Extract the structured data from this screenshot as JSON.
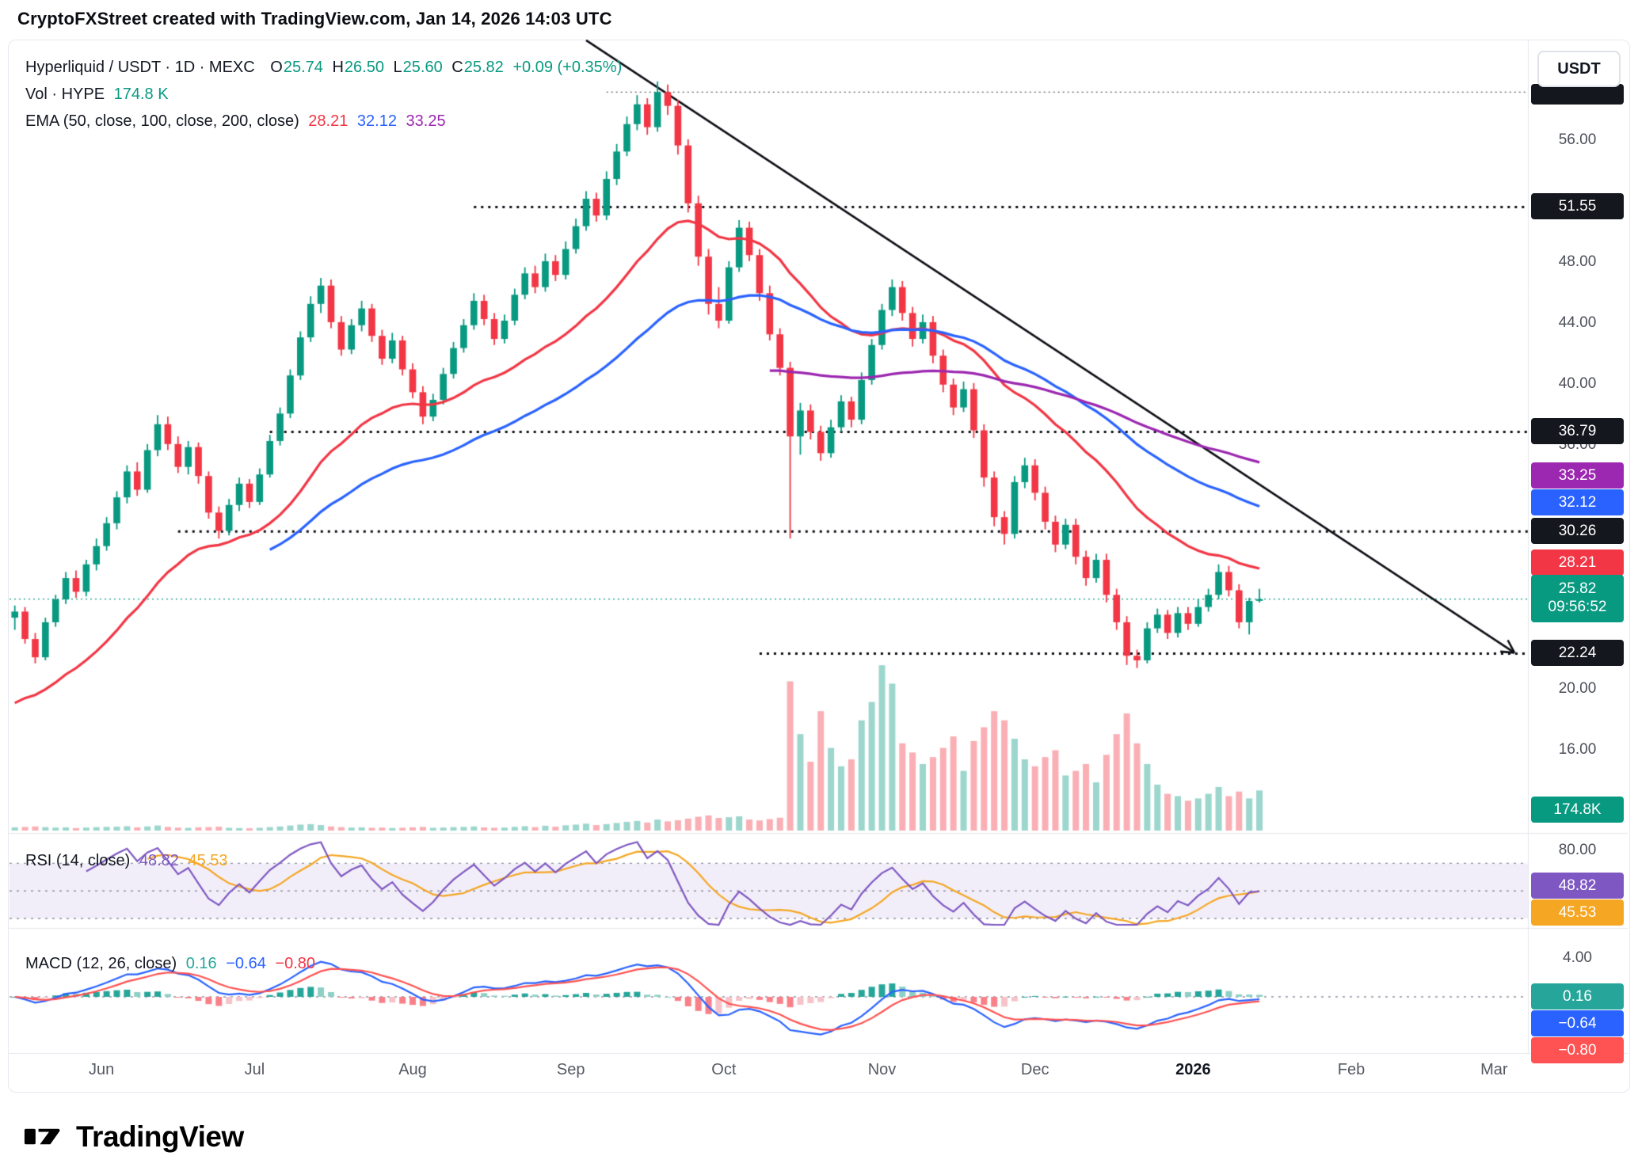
{
  "header": {
    "title": "CryptoFXStreet created with TradingView.com, Jan 14, 2026 14:03 UTC"
  },
  "colors": {
    "up": "#089981",
    "down": "#f23645",
    "blue": "#2962ff",
    "purple": "#9c27b0",
    "rsi_purple": "#7e57c2",
    "yellow": "#f5a623",
    "hist_pos": "#26a69a",
    "black": "#15171e",
    "text": "#131722",
    "muted": "#50535e",
    "signal": "#ff5252"
  },
  "legend": {
    "symbol": "Hyperliquid / USDT · 1D · MEXC",
    "o_label": "O",
    "o": "25.74",
    "h_label": "H",
    "h": "26.50",
    "l_label": "L",
    "l": "25.60",
    "c_label": "C",
    "c": "25.82",
    "change": "+0.09 (+0.35%)",
    "vol_label": "Vol · HYPE",
    "vol_value": "174.8 K",
    "ema_label": "EMA (50, close, 100, close, 200, close)",
    "ema50": "28.21",
    "ema100": "32.12",
    "ema200": "33.25"
  },
  "rsi_legend": {
    "label": "RSI (14, close)",
    "value": "48.82",
    "ma_value": "45.53"
  },
  "macd_legend": {
    "label": "MACD (12, 26, close)",
    "hist": "0.16",
    "macd": "−0.64",
    "signal": "−0.80"
  },
  "price_axis": {
    "currency": "USDT",
    "ticks": [
      {
        "label": "56.00"
      },
      {
        "label": "48.00"
      },
      {
        "label": "44.00"
      },
      {
        "label": "40.00"
      },
      {
        "label": "36.00"
      },
      {
        "label": "20.00"
      },
      {
        "label": "16.00"
      }
    ],
    "badges": [
      {
        "label": "51.55"
      },
      {
        "label": "36.79"
      },
      {
        "label": "33.25"
      },
      {
        "label": "32.12"
      },
      {
        "label": "30.26"
      },
      {
        "label": "28.21"
      },
      {
        "label": "25.82",
        "countdown": "09:56:52"
      },
      {
        "label": "22.24"
      },
      {
        "label": "174.8K"
      }
    ]
  },
  "rsi_axis": {
    "tick": "80.00",
    "badges": [
      {
        "label": "48.82"
      },
      {
        "label": "45.53"
      }
    ]
  },
  "macd_axis": {
    "tick": "4.00",
    "badges": [
      {
        "label": "0.16"
      },
      {
        "label": "−0.64"
      },
      {
        "label": "−0.80"
      }
    ]
  },
  "footer": {
    "brand": "TradingView"
  },
  "chart_data": {
    "type": "candlestick",
    "title": "Hyperliquid / USDT · 1D · MEXC",
    "days_per_candle": 2,
    "ylim": [
      14,
      62
    ],
    "volume_scale_max": 800,
    "candles": [
      [
        24.6,
        25.4,
        23.8,
        25.0,
        14
      ],
      [
        25.0,
        25.3,
        22.9,
        23.2,
        16
      ],
      [
        23.2,
        23.6,
        21.6,
        22.0,
        18
      ],
      [
        22.0,
        24.6,
        21.8,
        24.3,
        15
      ],
      [
        24.3,
        26.1,
        24.0,
        25.8,
        13
      ],
      [
        25.8,
        27.6,
        25.5,
        27.2,
        14
      ],
      [
        27.2,
        27.7,
        25.9,
        26.3,
        11
      ],
      [
        26.3,
        28.4,
        26.0,
        28.1,
        13
      ],
      [
        28.1,
        29.8,
        27.7,
        29.3,
        15
      ],
      [
        29.3,
        31.2,
        29.0,
        30.8,
        16
      ],
      [
        30.8,
        32.9,
        30.4,
        32.5,
        17
      ],
      [
        32.5,
        34.6,
        32.1,
        34.2,
        19
      ],
      [
        34.2,
        34.8,
        32.6,
        33.0,
        14
      ],
      [
        33.0,
        36.0,
        32.8,
        35.6,
        18
      ],
      [
        35.6,
        37.9,
        35.2,
        37.3,
        22
      ],
      [
        37.3,
        37.8,
        35.6,
        36.0,
        16
      ],
      [
        36.0,
        36.5,
        34.1,
        34.5,
        13
      ],
      [
        34.5,
        36.2,
        34.0,
        35.8,
        12
      ],
      [
        35.8,
        36.1,
        33.4,
        33.9,
        14
      ],
      [
        33.9,
        34.2,
        31.1,
        31.5,
        15
      ],
      [
        31.5,
        31.9,
        29.8,
        30.3,
        17
      ],
      [
        30.3,
        32.4,
        30.0,
        32.0,
        12
      ],
      [
        32.0,
        33.8,
        31.6,
        33.4,
        11
      ],
      [
        33.4,
        33.7,
        31.8,
        32.2,
        10
      ],
      [
        32.2,
        34.4,
        32.0,
        34.0,
        12
      ],
      [
        34.0,
        36.6,
        33.8,
        36.2,
        15
      ],
      [
        36.2,
        38.4,
        35.9,
        38.0,
        18
      ],
      [
        38.0,
        40.9,
        37.7,
        40.5,
        22
      ],
      [
        40.5,
        43.4,
        40.2,
        43.0,
        26
      ],
      [
        43.0,
        45.7,
        42.7,
        45.2,
        28
      ],
      [
        45.2,
        46.9,
        44.6,
        46.4,
        24
      ],
      [
        46.4,
        46.8,
        43.6,
        44.0,
        18
      ],
      [
        44.0,
        44.4,
        41.8,
        42.2,
        15
      ],
      [
        42.2,
        44.2,
        41.9,
        43.8,
        13
      ],
      [
        43.8,
        45.4,
        43.4,
        44.9,
        14
      ],
      [
        44.9,
        45.2,
        42.7,
        43.1,
        12
      ],
      [
        43.1,
        43.5,
        41.2,
        41.6,
        13
      ],
      [
        41.6,
        43.3,
        41.3,
        42.8,
        11
      ],
      [
        42.8,
        43.1,
        40.5,
        40.9,
        12
      ],
      [
        40.9,
        41.3,
        39.0,
        39.4,
        14
      ],
      [
        39.4,
        39.8,
        37.3,
        37.8,
        16
      ],
      [
        37.8,
        39.3,
        37.5,
        38.9,
        12
      ],
      [
        38.9,
        41.0,
        38.6,
        40.6,
        13
      ],
      [
        40.6,
        42.7,
        40.3,
        42.3,
        15
      ],
      [
        42.3,
        44.2,
        42.0,
        43.8,
        16
      ],
      [
        43.8,
        45.9,
        43.5,
        45.4,
        18
      ],
      [
        45.4,
        45.8,
        43.8,
        44.2,
        14
      ],
      [
        44.2,
        44.6,
        42.5,
        42.9,
        12
      ],
      [
        42.9,
        44.5,
        42.6,
        44.1,
        13
      ],
      [
        44.1,
        46.2,
        43.8,
        45.8,
        16
      ],
      [
        45.8,
        47.6,
        45.5,
        47.2,
        19
      ],
      [
        47.2,
        47.7,
        45.9,
        46.3,
        15
      ],
      [
        46.3,
        48.5,
        46.0,
        48.0,
        21
      ],
      [
        48.0,
        48.4,
        46.7,
        47.1,
        17
      ],
      [
        47.1,
        49.3,
        46.8,
        48.8,
        23
      ],
      [
        48.8,
        50.8,
        48.5,
        50.3,
        26
      ],
      [
        50.3,
        52.6,
        50.0,
        52.1,
        30
      ],
      [
        52.1,
        52.5,
        50.6,
        51.0,
        24
      ],
      [
        51.0,
        53.9,
        50.7,
        53.4,
        28
      ],
      [
        53.4,
        55.7,
        53.0,
        55.2,
        33
      ],
      [
        55.2,
        57.5,
        54.9,
        57.0,
        38
      ],
      [
        57.0,
        58.9,
        56.6,
        58.3,
        42
      ],
      [
        58.3,
        58.7,
        56.3,
        56.8,
        35
      ],
      [
        56.8,
        59.8,
        56.5,
        59.1,
        48
      ],
      [
        59.1,
        59.6,
        57.6,
        58.2,
        40
      ],
      [
        58.2,
        58.6,
        55.0,
        55.6,
        45
      ],
      [
        55.6,
        56.0,
        51.2,
        51.8,
        52
      ],
      [
        51.8,
        52.3,
        47.7,
        48.3,
        60
      ],
      [
        48.3,
        48.8,
        44.5,
        45.2,
        66
      ],
      [
        45.2,
        46.3,
        43.6,
        44.1,
        55
      ],
      [
        44.1,
        48.0,
        43.9,
        47.6,
        58
      ],
      [
        47.6,
        50.7,
        47.3,
        50.2,
        62
      ],
      [
        50.2,
        50.6,
        48.0,
        48.4,
        48
      ],
      [
        48.4,
        48.8,
        45.4,
        45.9,
        44
      ],
      [
        45.9,
        46.4,
        42.8,
        43.2,
        50
      ],
      [
        43.2,
        43.6,
        40.5,
        41.0,
        56
      ],
      [
        41.0,
        41.4,
        29.8,
        36.5,
        650
      ],
      [
        36.5,
        38.7,
        35.3,
        38.2,
        420
      ],
      [
        38.2,
        38.6,
        36.3,
        36.8,
        300
      ],
      [
        36.8,
        37.2,
        34.9,
        35.4,
        520
      ],
      [
        35.4,
        37.6,
        35.1,
        37.1,
        360
      ],
      [
        37.1,
        39.2,
        36.8,
        38.8,
        280
      ],
      [
        38.8,
        39.1,
        37.1,
        37.6,
        310
      ],
      [
        37.6,
        40.7,
        37.3,
        40.2,
        480
      ],
      [
        40.2,
        42.9,
        39.9,
        42.5,
        560
      ],
      [
        42.5,
        45.2,
        42.2,
        44.8,
        720
      ],
      [
        44.8,
        46.8,
        44.4,
        46.3,
        640
      ],
      [
        46.3,
        46.7,
        44.1,
        44.6,
        380
      ],
      [
        44.6,
        45.0,
        42.4,
        42.9,
        340
      ],
      [
        42.9,
        44.5,
        42.6,
        44.0,
        290
      ],
      [
        44.0,
        44.4,
        41.3,
        41.8,
        320
      ],
      [
        41.8,
        42.2,
        39.4,
        39.9,
        360
      ],
      [
        39.9,
        40.3,
        37.9,
        38.4,
        410
      ],
      [
        38.4,
        40.1,
        38.1,
        39.6,
        260
      ],
      [
        39.6,
        40.0,
        36.4,
        36.9,
        390
      ],
      [
        36.9,
        37.3,
        33.2,
        33.8,
        450
      ],
      [
        33.8,
        34.2,
        30.6,
        31.2,
        520
      ],
      [
        31.2,
        31.6,
        29.4,
        30.1,
        480
      ],
      [
        30.1,
        33.9,
        29.8,
        33.5,
        400
      ],
      [
        33.5,
        35.1,
        33.1,
        34.6,
        310
      ],
      [
        34.6,
        35.0,
        32.3,
        32.8,
        280
      ],
      [
        32.8,
        33.2,
        30.4,
        30.9,
        320
      ],
      [
        30.9,
        31.3,
        28.9,
        29.4,
        350
      ],
      [
        29.4,
        31.1,
        29.1,
        30.7,
        240
      ],
      [
        30.7,
        31.1,
        28.1,
        28.6,
        260
      ],
      [
        28.6,
        29.0,
        26.7,
        27.2,
        290
      ],
      [
        27.2,
        28.8,
        26.9,
        28.4,
        210
      ],
      [
        28.4,
        28.8,
        25.6,
        26.1,
        330
      ],
      [
        26.1,
        26.5,
        23.8,
        24.3,
        420
      ],
      [
        24.3,
        24.7,
        21.5,
        22.1,
        510
      ],
      [
        22.1,
        22.5,
        21.3,
        21.8,
        380
      ],
      [
        21.8,
        24.3,
        21.6,
        23.9,
        290
      ],
      [
        23.9,
        25.2,
        23.6,
        24.8,
        200
      ],
      [
        24.8,
        25.1,
        23.2,
        23.6,
        160
      ],
      [
        23.6,
        25.3,
        23.3,
        24.9,
        150
      ],
      [
        24.9,
        25.3,
        23.8,
        24.2,
        130
      ],
      [
        24.2,
        25.8,
        24.0,
        25.3,
        140
      ],
      [
        25.3,
        26.5,
        25.0,
        26.1,
        160
      ],
      [
        26.1,
        28.1,
        25.8,
        27.6,
        190
      ],
      [
        27.6,
        28.0,
        26.0,
        26.4,
        150
      ],
      [
        26.4,
        26.8,
        23.9,
        24.3,
        170
      ],
      [
        24.3,
        25.9,
        23.5,
        25.7,
        140
      ],
      [
        25.74,
        26.5,
        25.6,
        25.82,
        174.8
      ]
    ],
    "emas": [
      {
        "name": "EMA 50",
        "period": 50,
        "color": "#f23645",
        "seed": 19,
        "draw_from": 0,
        "last": 28.21
      },
      {
        "name": "EMA 100",
        "period": 100,
        "color": "#2962ff",
        "seed": 24,
        "draw_from": 25,
        "last": 32.12
      },
      {
        "name": "EMA 200",
        "period": 200,
        "color": "#9c27b0",
        "seed": 28,
        "draw_from": 74,
        "last": 33.25
      }
    ],
    "levels": [
      {
        "price": 59.1,
        "from_index": 58,
        "thin": true
      },
      {
        "price": 51.55,
        "from_index": 45
      },
      {
        "price": 36.79,
        "from_index": 25
      },
      {
        "price": 30.26,
        "from_index": 16
      },
      {
        "price": 22.24,
        "from_index": 73
      }
    ],
    "last_price": 25.82,
    "trendline": {
      "from_index": 56,
      "from_price": 62.5,
      "to_index": 147,
      "to_price": 22.3
    },
    "rsi": {
      "period": 14,
      "ma_period": 14,
      "upper": 70,
      "mid": 50,
      "lower": 30,
      "last": 48.82,
      "ma_last": 45.53,
      "color": "#7e57c2",
      "ma_color": "#f5a623"
    },
    "macd": {
      "fast": 12,
      "slow": 26,
      "signal": 9,
      "hist_last": 0.16,
      "macd_last": -0.64,
      "signal_last": -0.8,
      "line_color": "#2962ff",
      "signal_color": "#ff5252"
    },
    "x_labels": [
      {
        "label": "Jun",
        "index": 8.5
      },
      {
        "label": "Jul",
        "index": 23.5
      },
      {
        "label": "Aug",
        "index": 39
      },
      {
        "label": "Sep",
        "index": 54.5
      },
      {
        "label": "Oct",
        "index": 69.5
      },
      {
        "label": "Nov",
        "index": 85
      },
      {
        "label": "Dec",
        "index": 100
      },
      {
        "label": "2026",
        "index": 115.5
      },
      {
        "label": "Feb",
        "index": 131
      },
      {
        "label": "Mar",
        "index": 145
      }
    ]
  }
}
